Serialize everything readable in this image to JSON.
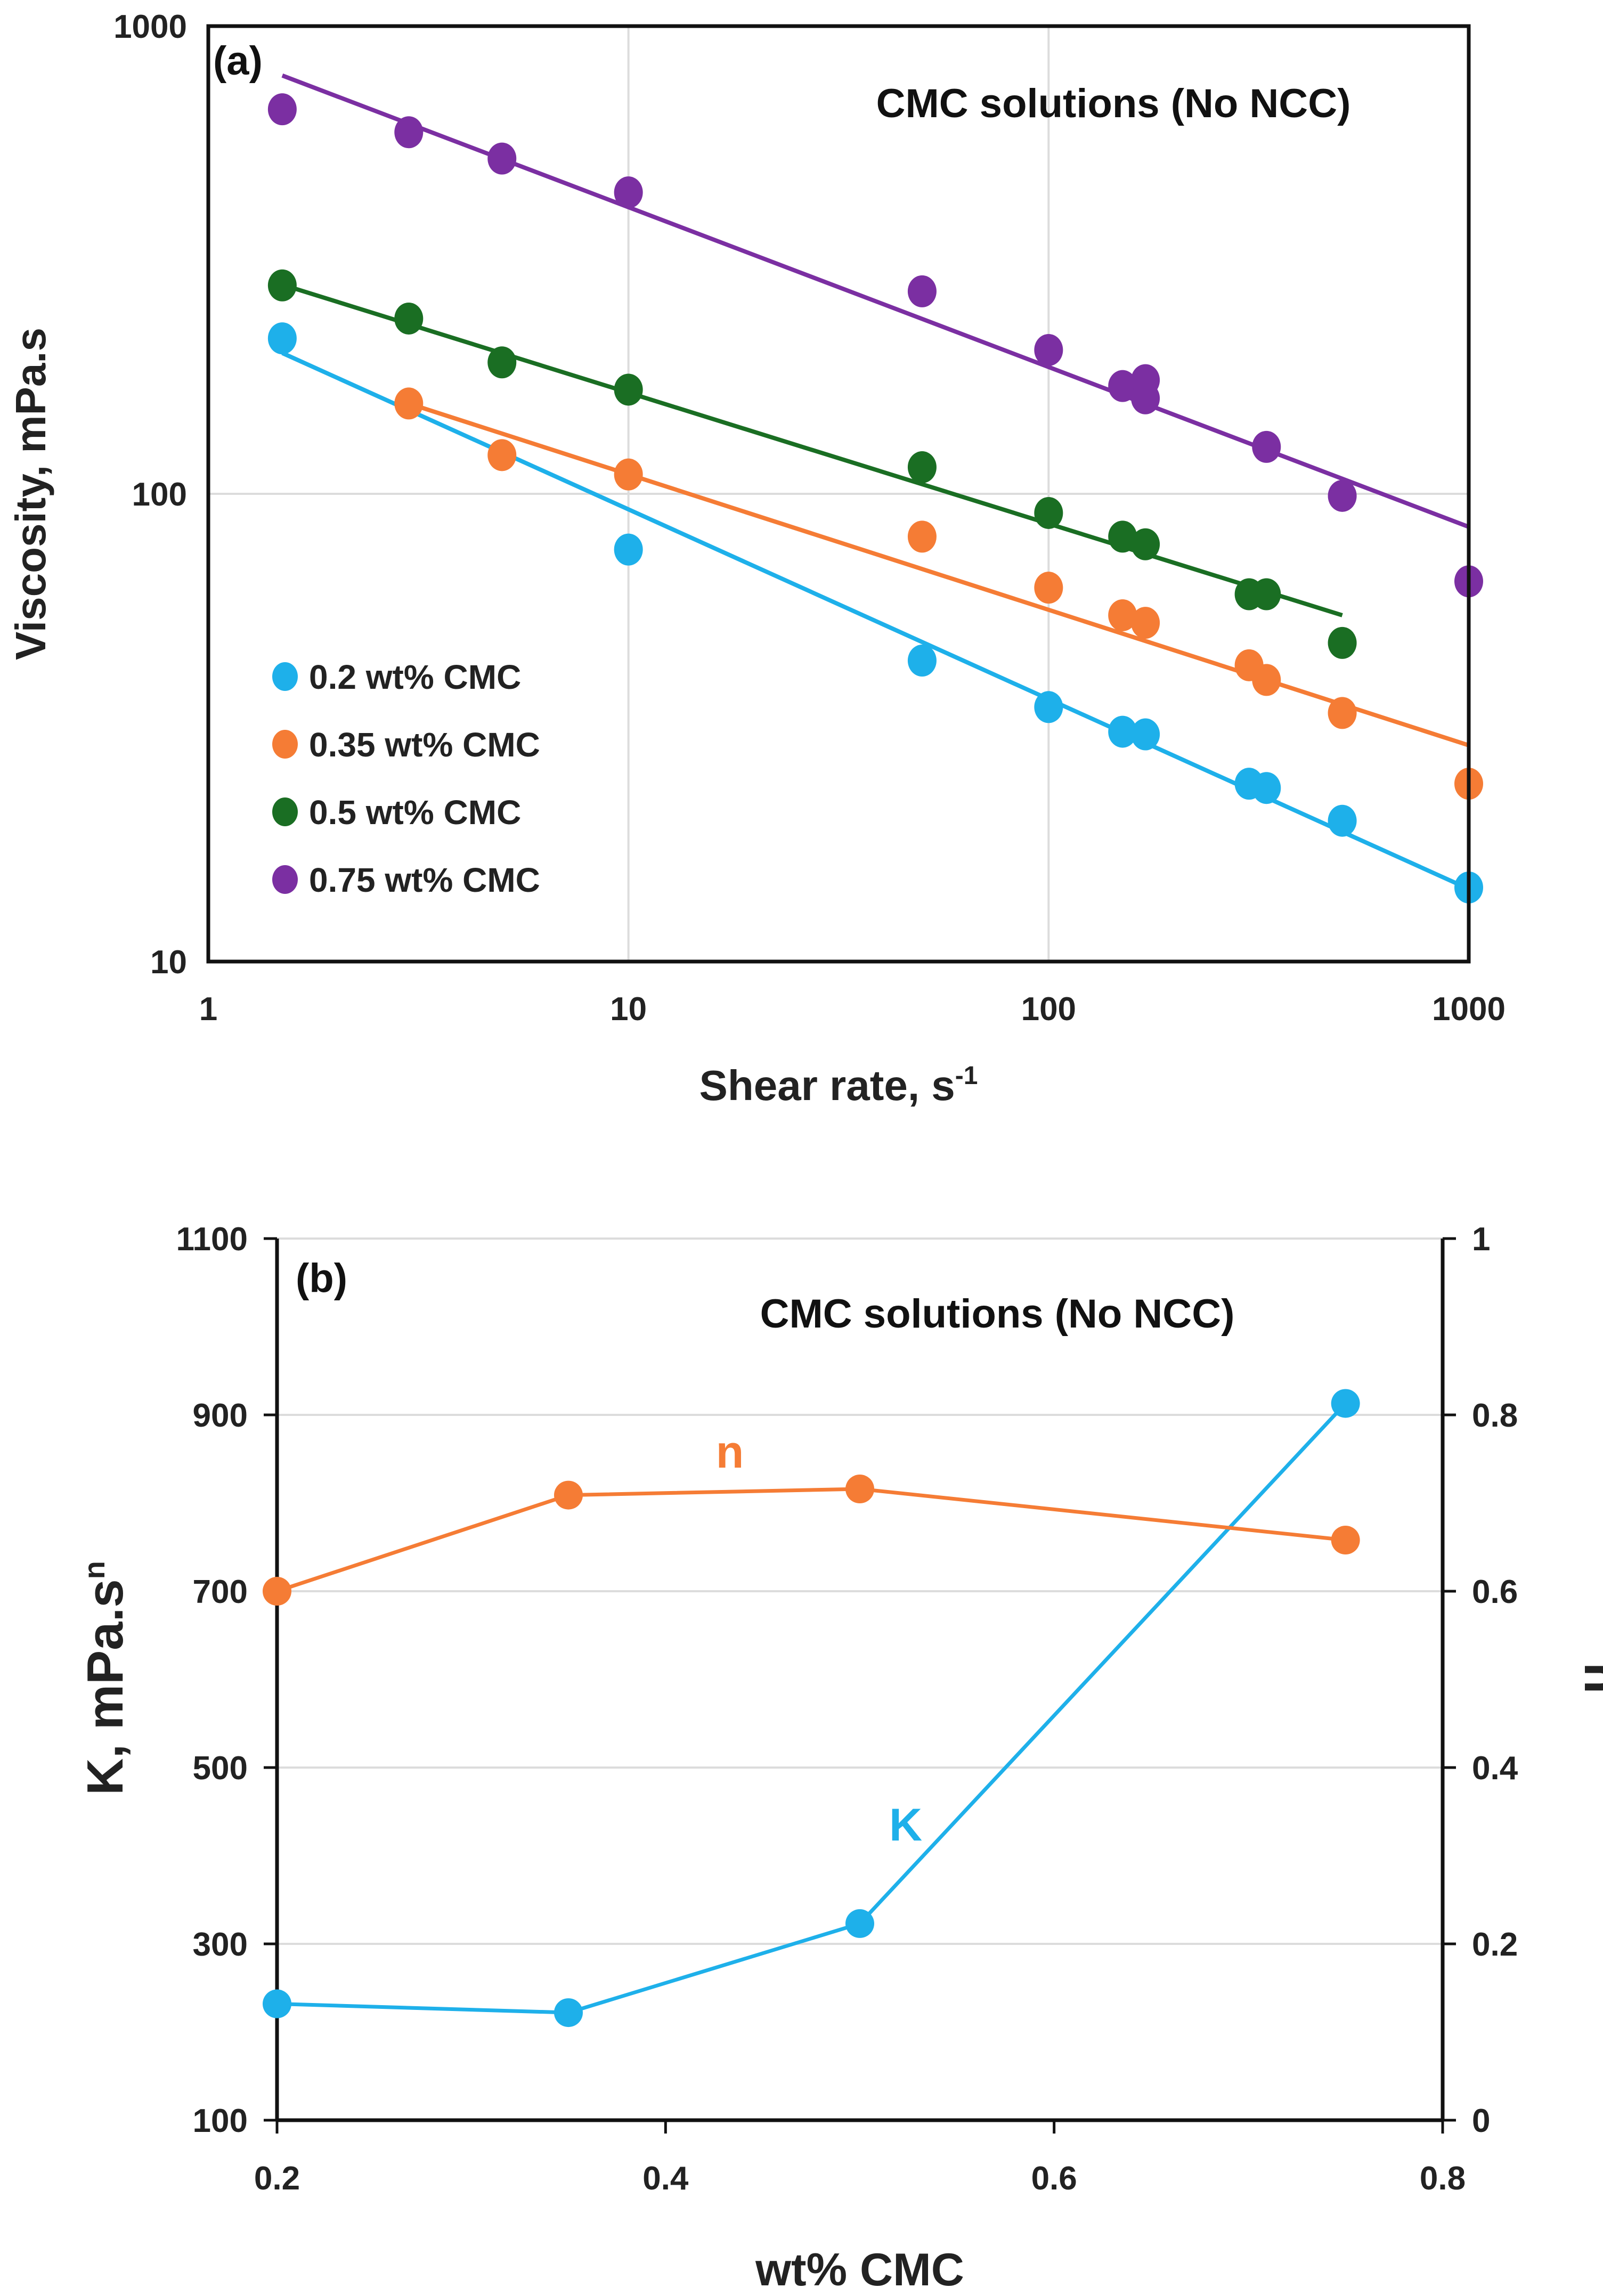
{
  "chart_data": [
    {
      "type": "scatter",
      "panel_label": "(a)",
      "title": "CMC solutions (No NCC)",
      "xlabel": "Shear rate, s",
      "xlabel_sup": "-1",
      "ylabel": "Viscosity, mPa.s",
      "xscale": "log",
      "yscale": "log",
      "xlim": [
        1,
        1000
      ],
      "ylim": [
        10,
        1000
      ],
      "xticks": [
        "1",
        "10",
        "100",
        "1000"
      ],
      "yticks": [
        "10",
        "100",
        "1000"
      ],
      "grid": true,
      "legend_position": "bottom-left",
      "series": [
        {
          "name": "0.2 wt% CMC",
          "color": "#1eb0ea",
          "x": [
            1.5,
            10,
            50,
            100,
            150,
            170,
            300,
            330,
            500,
            1000
          ],
          "y": [
            215,
            76,
            44,
            35,
            31,
            30.6,
            24,
            23.5,
            20,
            14.4
          ],
          "fit": {
            "x": [
              1.5,
              1000
            ],
            "y": [
              200,
              14.3
            ]
          }
        },
        {
          "name": "0.35 wt% CMC",
          "color": "#f57c35",
          "x": [
            3,
            5,
            10,
            50,
            100,
            150,
            170,
            300,
            330,
            500,
            1000
          ],
          "y": [
            156,
            121,
            110,
            81,
            63,
            55,
            53,
            43,
            40,
            34,
            24
          ],
          "fit": {
            "x": [
              3,
              1000
            ],
            "y": [
              156,
              29
            ]
          }
        },
        {
          "name": "0.5 wt% CMC",
          "color": "#1a6e23",
          "x": [
            1.5,
            3,
            5,
            10,
            50,
            100,
            150,
            170,
            300,
            330,
            500
          ],
          "y": [
            279,
            237,
            191,
            167,
            114,
            91,
            81,
            78,
            61,
            61,
            48
          ],
          "fit": {
            "x": [
              1.5,
              500
            ],
            "y": [
              280,
              55
            ]
          }
        },
        {
          "name": "0.75 wt% CMC",
          "color": "#7b2fa2",
          "x": [
            1.5,
            3,
            5,
            10,
            50,
            100,
            150,
            170,
            170,
            330,
            500,
            1000
          ],
          "y": [
            664,
            593,
            521,
            441,
            271,
            203,
            170,
            175,
            160,
            126,
            99,
            65
          ],
          "fit": {
            "x": [
              1.5,
              1000
            ],
            "y": [
              784,
              85
            ]
          }
        }
      ]
    },
    {
      "type": "line",
      "panel_label": "(b)",
      "title": "CMC solutions (No NCC)",
      "xlabel": "wt% CMC",
      "ylabel": "K, mPa.s",
      "ylabel_sup": "n",
      "y2label": "n",
      "xlim": [
        0.2,
        0.8
      ],
      "ylim": [
        100,
        1100
      ],
      "y2lim": [
        0,
        1
      ],
      "xticks": [
        "0.2",
        "0.4",
        "0.6",
        "0.8"
      ],
      "yticks": [
        "100",
        "300",
        "500",
        "700",
        "900",
        "1100"
      ],
      "y2ticks": [
        "0",
        "0.2",
        "0.4",
        "0.6",
        "0.8",
        "1"
      ],
      "grid": true,
      "series": [
        {
          "name": "K",
          "label": "K",
          "axis": "left",
          "color": "#1eb0ea",
          "x": [
            0.2,
            0.35,
            0.5,
            0.75
          ],
          "y": [
            232,
            222,
            323,
            913
          ]
        },
        {
          "name": "n",
          "label": "n",
          "axis": "right",
          "color": "#f57c35",
          "x": [
            0.2,
            0.35,
            0.5,
            0.75
          ],
          "y": [
            0.6,
            0.709,
            0.716,
            0.658
          ]
        }
      ]
    }
  ]
}
